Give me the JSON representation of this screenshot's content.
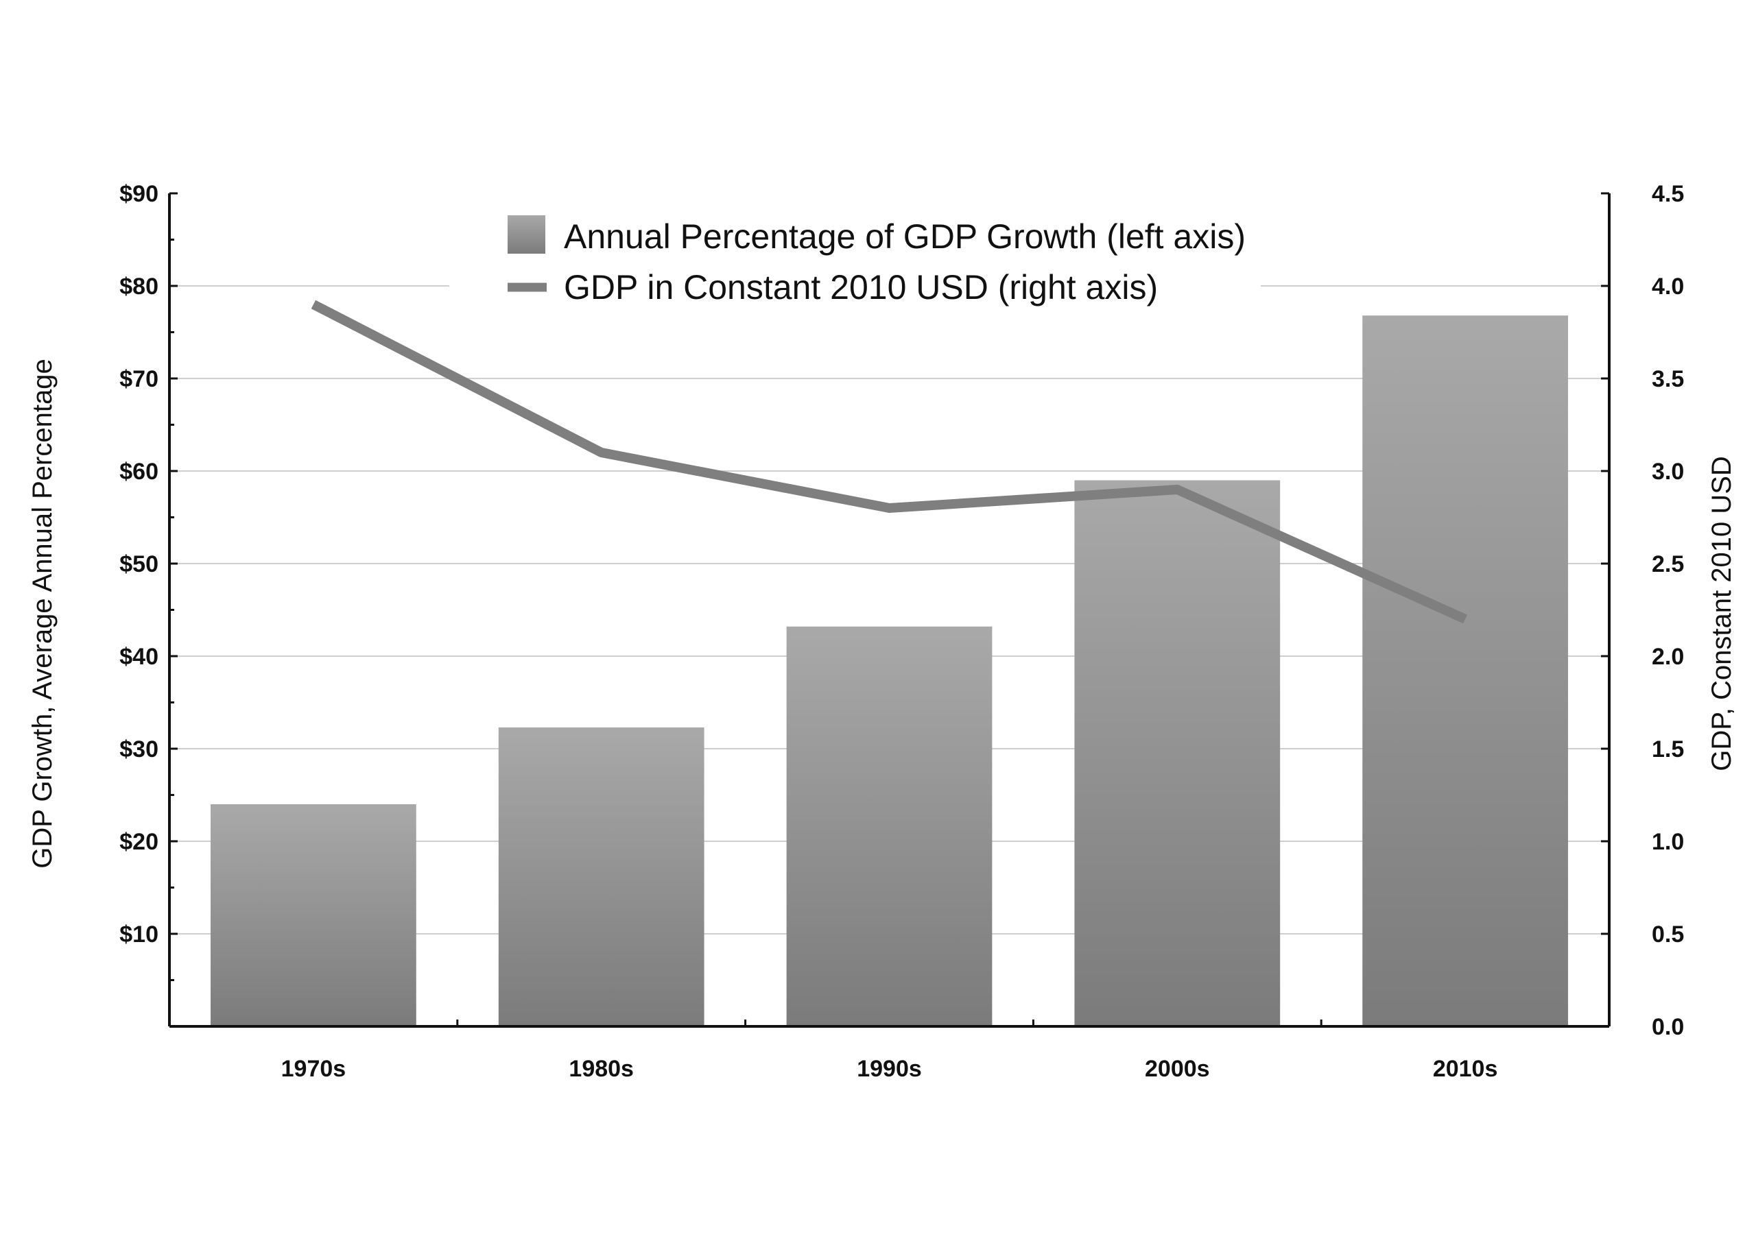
{
  "chart_data": {
    "type": "bar",
    "title": "",
    "categories": [
      "1970s",
      "1980s",
      "1990s",
      "2000s",
      "2010s"
    ],
    "series": [
      {
        "name": "Annual Percentage of GDP Growth (left axis)",
        "type": "bar",
        "axis": "left",
        "values": [
          24,
          32.3,
          43.2,
          59,
          76.8
        ]
      },
      {
        "name": "GDP in Constant 2010 USD (right axis)",
        "type": "line",
        "axis": "right",
        "values": [
          3.9,
          3.1,
          2.8,
          2.9,
          2.2
        ]
      }
    ],
    "ylabel": "GDP Growth, Average Annual Percentage",
    "ylabel_right": "GDP, Constant 2010 USD",
    "xlabel": "",
    "ylim": [
      0,
      90
    ],
    "ylim_right": [
      0,
      4.5
    ],
    "yticks_left": [
      "$10",
      "$20",
      "$30",
      "$40",
      "$50",
      "$60",
      "$70",
      "$80",
      "$90"
    ],
    "yticks_right": [
      "0.0",
      "0.5",
      "1.0",
      "1.5",
      "2.0",
      "2.5",
      "3.0",
      "3.5",
      "4.0",
      "4.5"
    ],
    "grid": true,
    "legend_position": "top-center",
    "colors": {
      "bar_top": "#a9a9a9",
      "bar_bottom": "#7b7b7b",
      "line": "#7f7f7f",
      "grid": "#cfcfcf",
      "axis": "#111111"
    }
  }
}
